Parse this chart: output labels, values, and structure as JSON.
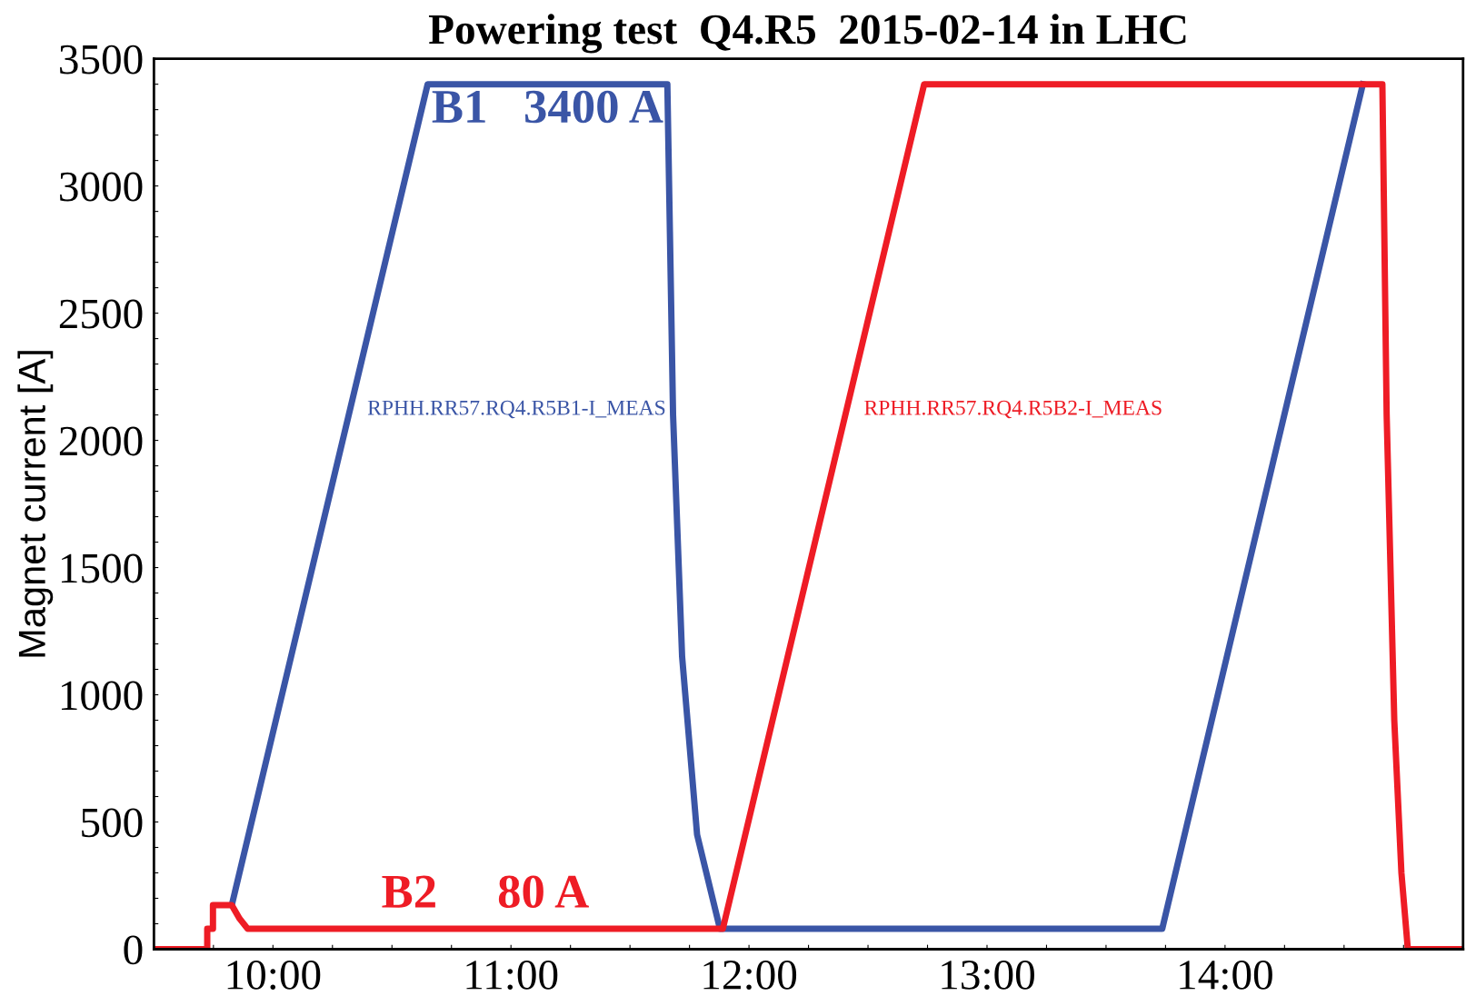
{
  "chart_data": {
    "type": "line",
    "title": "Powering test  Q4.R5  2015-02-14 in LHC",
    "ylabel": "Magnet current [A]",
    "xlim": [
      9.5,
      15.0
    ],
    "xticks": [
      {
        "value": 9.75,
        "label": null
      },
      {
        "value": 10,
        "label": "10:00"
      },
      {
        "value": 10.25,
        "label": null
      },
      {
        "value": 10.5,
        "label": null
      },
      {
        "value": 10.75,
        "label": null
      },
      {
        "value": 11,
        "label": "11:00"
      },
      {
        "value": 11.25,
        "label": null
      },
      {
        "value": 11.5,
        "label": null
      },
      {
        "value": 11.75,
        "label": null
      },
      {
        "value": 12,
        "label": "12:00"
      },
      {
        "value": 12.25,
        "label": null
      },
      {
        "value": 12.5,
        "label": null
      },
      {
        "value": 12.75,
        "label": null
      },
      {
        "value": 13,
        "label": "13:00"
      },
      {
        "value": 13.25,
        "label": null
      },
      {
        "value": 13.5,
        "label": null
      },
      {
        "value": 13.75,
        "label": null
      },
      {
        "value": 14,
        "label": "14:00"
      },
      {
        "value": 14.25,
        "label": null
      },
      {
        "value": 14.5,
        "label": null
      },
      {
        "value": 14.75,
        "label": null
      }
    ],
    "ylim": [
      0,
      3500
    ],
    "yticks": [
      0,
      {
        "value": 100,
        "label": null
      },
      {
        "value": 200,
        "label": null
      },
      {
        "value": 300,
        "label": null
      },
      {
        "value": 400,
        "label": null
      },
      500,
      {
        "value": 600,
        "label": null
      },
      {
        "value": 700,
        "label": null
      },
      {
        "value": 800,
        "label": null
      },
      {
        "value": 900,
        "label": null
      },
      1000,
      {
        "value": 1100,
        "label": null
      },
      {
        "value": 1200,
        "label": null
      },
      {
        "value": 1300,
        "label": null
      },
      {
        "value": 1400,
        "label": null
      },
      1500,
      {
        "value": 1600,
        "label": null
      },
      {
        "value": 1700,
        "label": null
      },
      {
        "value": 1800,
        "label": null
      },
      {
        "value": 1900,
        "label": null
      },
      2000,
      {
        "value": 2100,
        "label": null
      },
      {
        "value": 2200,
        "label": null
      },
      {
        "value": 2300,
        "label": null
      },
      {
        "value": 2400,
        "label": null
      },
      2500,
      {
        "value": 2600,
        "label": null
      },
      {
        "value": 2700,
        "label": null
      },
      {
        "value": 2800,
        "label": null
      },
      {
        "value": 2900,
        "label": null
      },
      3000,
      {
        "value": 3100,
        "label": null
      },
      {
        "value": 3200,
        "label": null
      },
      {
        "value": 3300,
        "label": null
      },
      {
        "value": 3400,
        "label": null
      },
      3500
    ],
    "grid": false,
    "legend": false,
    "marker": "none",
    "line_style": "solid",
    "series": [
      {
        "name": "RPHH.RR57.RQ4.R5B1-I_MEAS",
        "color": "#3a55a6",
        "x": [
          9.827,
          10.65,
          11.657,
          11.681,
          11.719,
          11.782,
          11.878,
          13.736,
          14.579
        ],
        "values": [
          173,
          3400,
          3400,
          2100,
          1150,
          450,
          80,
          80,
          3400
        ]
      },
      {
        "name": "RPHH.RR57.RQ4.R5B2-I_MEAS",
        "color": "#ee1c25",
        "x": [
          9.5,
          9.724,
          9.724,
          9.748,
          9.748,
          9.827,
          9.86,
          9.894,
          11.89,
          12.736,
          14.661,
          14.679,
          14.711,
          14.741,
          14.768,
          15.0
        ],
        "values": [
          0,
          0,
          80,
          80,
          173,
          173,
          120,
          80,
          80,
          3400,
          3400,
          2100,
          900,
          300,
          0,
          0
        ]
      }
    ],
    "annotations": [
      "B1   3400 A",
      "B2     80 A"
    ]
  }
}
